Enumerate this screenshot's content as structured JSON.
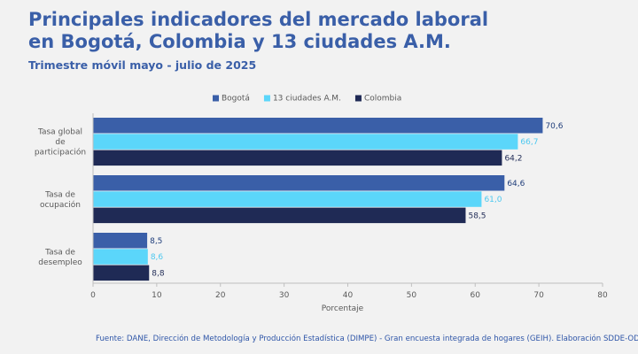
{
  "header": {
    "title_line1": "Principales indicadores del mercado laboral",
    "title_line2": "en Bogotá, Colombia y 13 ciudades A.M.",
    "subtitle": "Trimestre móvil mayo - julio de 2025"
  },
  "footer": {
    "source": "Fuente: DANE, Dirección de Metodología y Producción Estadística (DIMPE) - Gran encuesta integrada de hogares (GEIH). Elaboración SDDE-ODEB."
  },
  "colors": {
    "bogota": "#3a5fa8",
    "ciudades": "#5bd6fa",
    "colombia": "#1f2a55",
    "axis": "#bfbfbf",
    "text": "#595959"
  },
  "chart_data": {
    "type": "bar",
    "orientation": "horizontal",
    "categories": [
      [
        "Tasa global",
        "de",
        "participación"
      ],
      [
        "Tasa de",
        "ocupación"
      ],
      [
        "Tasa de",
        "desempleo"
      ]
    ],
    "series": [
      {
        "name": "Bogotá",
        "values": [
          70.6,
          64.6,
          8.5
        ],
        "labels": [
          "70,6",
          "64,6",
          "8,5"
        ],
        "color": "#3a5fa8",
        "label_color": "#1f3d7a"
      },
      {
        "name": "13 ciudades A.M.",
        "values": [
          66.7,
          61.0,
          8.6
        ],
        "labels": [
          "66,7",
          "61,0",
          "8,6"
        ],
        "color": "#5bd6fa",
        "label_color": "#4cc8f0"
      },
      {
        "name": "Colombia",
        "values": [
          64.2,
          58.5,
          8.8
        ],
        "labels": [
          "64,2",
          "58,5",
          "8,8"
        ],
        "color": "#1f2a55",
        "label_color": "#1f2a55"
      }
    ],
    "xlabel": "Porcentaje",
    "xlim": [
      0,
      80
    ],
    "xticks": [
      0,
      10,
      20,
      30,
      40,
      50,
      60,
      70,
      80
    ],
    "grid": false,
    "legend": "top-center"
  }
}
